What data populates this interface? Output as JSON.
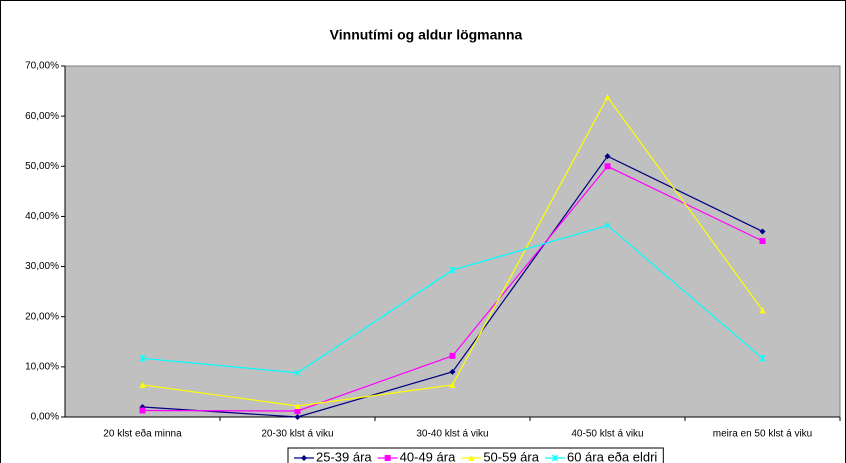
{
  "chart_data": {
    "type": "line",
    "title": "Vinnutími og aldur lögmanna",
    "categories": [
      "20 klst eða minna",
      "20-30 klst á viku",
      "30-40 klst á viku",
      "40-50 klst á viku",
      "meira en 50 klst á viku"
    ],
    "series": [
      {
        "name": "25-39 ára",
        "color": "#000080",
        "marker": "diamond",
        "values": [
          2.0,
          0.0,
          9.0,
          52.0,
          37.0
        ]
      },
      {
        "name": "40-49 ára",
        "color": "#ff00ff",
        "marker": "square",
        "values": [
          1.3,
          1.2,
          12.2,
          50.0,
          35.1
        ]
      },
      {
        "name": "50-59 ára",
        "color": "#ffff00",
        "marker": "triangle",
        "values": [
          6.4,
          2.2,
          6.4,
          63.8,
          21.3
        ]
      },
      {
        "name": "60 ára eða eldri",
        "color": "#00ffff",
        "marker": "x",
        "values": [
          11.7,
          8.8,
          29.3,
          38.2,
          11.7
        ]
      }
    ],
    "ylim": [
      0,
      70
    ],
    "yticks": [
      {
        "value": 0,
        "label": "0,00%"
      },
      {
        "value": 10,
        "label": "10,00%"
      },
      {
        "value": 20,
        "label": "20,00%"
      },
      {
        "value": 30,
        "label": "30,00%"
      },
      {
        "value": 40,
        "label": "40,00%"
      },
      {
        "value": 50,
        "label": "50,00%"
      },
      {
        "value": 60,
        "label": "60,00%"
      },
      {
        "value": 70,
        "label": "70,00%"
      }
    ],
    "grid": false,
    "legend": "bottom",
    "plot_background": "#c0c0c0"
  }
}
